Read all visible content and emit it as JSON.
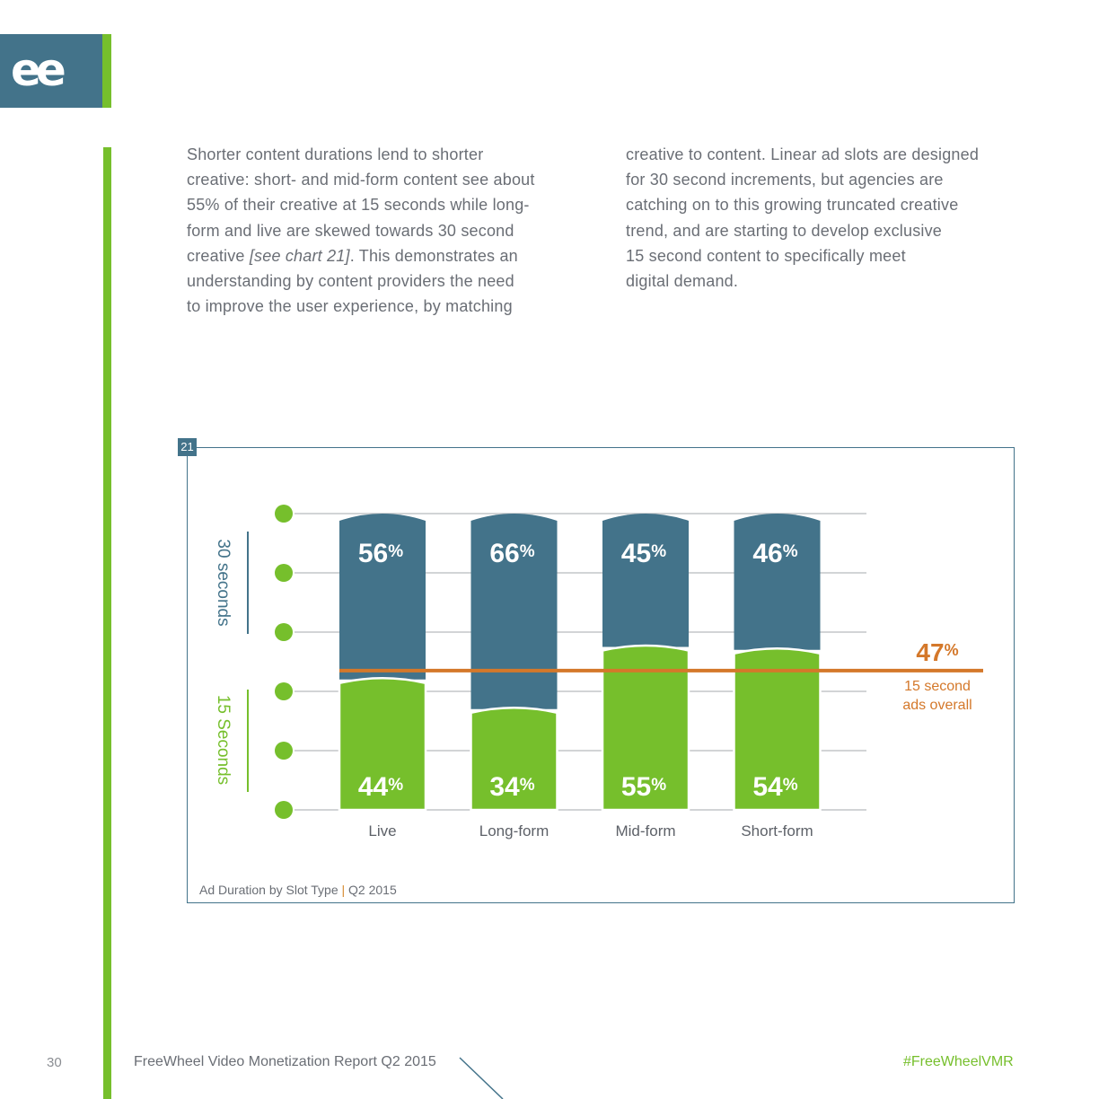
{
  "header": {
    "logo_glyph": "ee"
  },
  "body_text": {
    "left_lines": [
      "Shorter content durations lend to shorter",
      "creative: short- and mid-form content see about",
      "55% of their creative at 15 seconds while long-",
      "form and live are skewed towards 30 second"
    ],
    "left_line5_pre": "creative ",
    "left_line5_ital": "[see chart 21]",
    "left_line5_post": ". This demonstrates an",
    "left_lines_end": [
      "understanding by content providers the need",
      "to improve the user experience, by matching"
    ],
    "right_lines": [
      "creative to content. Linear ad slots are designed",
      "for 30 second increments, but agencies are",
      "catching on to this growing truncated creative",
      "trend, and are starting to develop exclusive",
      "15 second content to specifically meet",
      "digital demand."
    ]
  },
  "chart": {
    "number": "21",
    "caption_title": "Ad Duration by Slot Type",
    "caption_sep": "|",
    "caption_period": "Q2 2015",
    "colors": {
      "top": "#43738a",
      "bottom": "#76bf2c",
      "avg": "#d4782a",
      "grid": "#c4c6c8"
    }
  },
  "chart_data": {
    "type": "bar",
    "stacked": true,
    "title": "Ad Duration by Slot Type",
    "categories": [
      "Live",
      "Long-form",
      "Mid-form",
      "Short-form"
    ],
    "series": [
      {
        "name": "15 Seconds",
        "values": [
          44,
          34,
          55,
          54
        ],
        "labels": [
          "44",
          "34",
          "55",
          "54"
        ]
      },
      {
        "name": "30 seconds",
        "values": [
          56,
          66,
          45,
          46
        ],
        "labels": [
          "56",
          "66",
          "45",
          "46"
        ]
      }
    ],
    "percent_sign": "%",
    "reference_line": {
      "value": 47,
      "label_value": "47",
      "label_line1": "15 second",
      "label_line2": "ads overall"
    },
    "ylim": [
      0,
      100
    ]
  },
  "footer": {
    "page_number": "30",
    "title": "FreeWheel Video Monetization Report Q2 2015",
    "hashtag": "#FreeWheelVMR"
  }
}
